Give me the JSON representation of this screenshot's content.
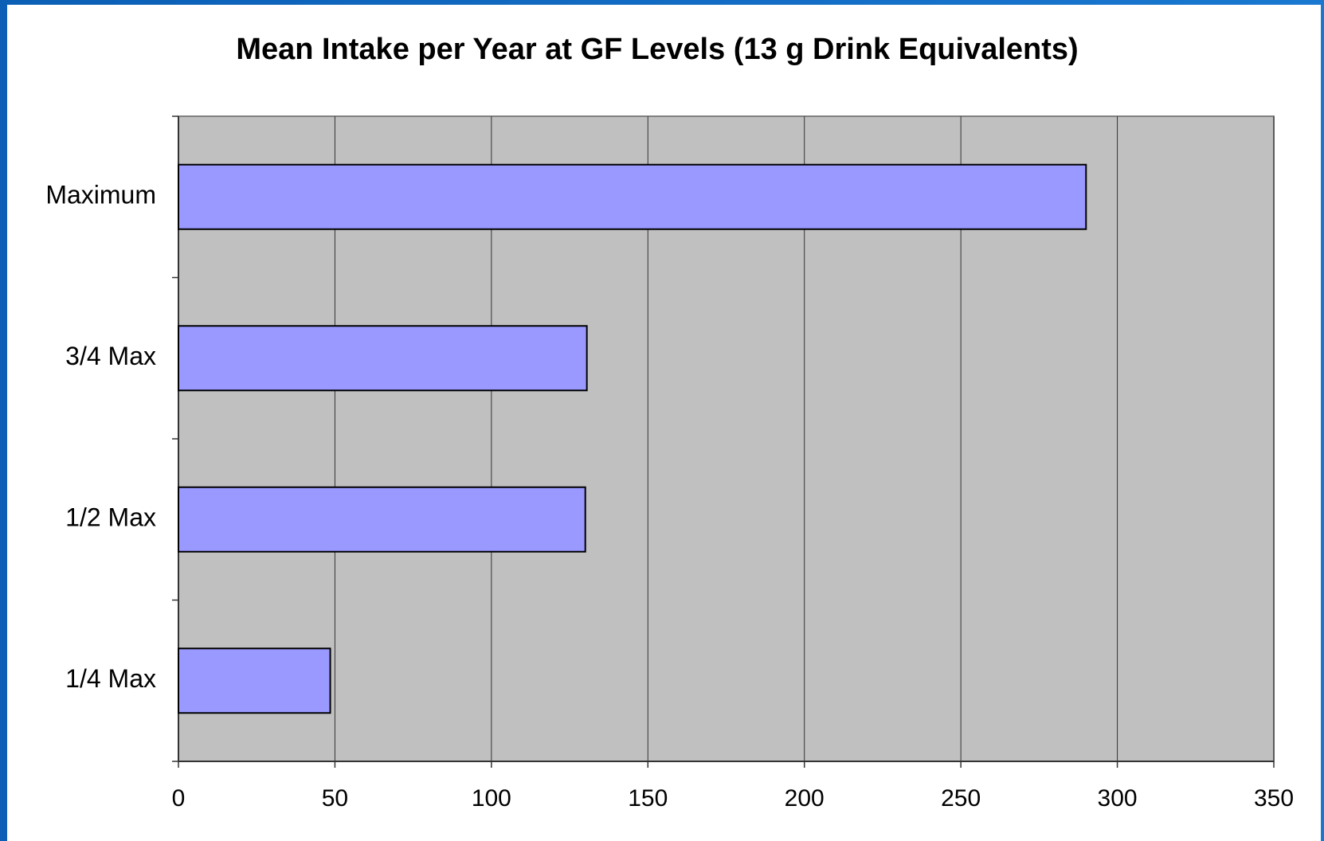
{
  "chart_data": {
    "type": "barh",
    "title": "Mean Intake per Year at GF Levels (13 g Drink Equivalents)",
    "categories": [
      "Maximum",
      "3/4 Max",
      "1/2 Max",
      "1/4 Max"
    ],
    "values": [
      290,
      130.5,
      130,
      48.5
    ],
    "color": "#9999ff",
    "xlim": [
      0,
      350
    ],
    "xticks": [
      0,
      50,
      100,
      150,
      200,
      250,
      300,
      350
    ],
    "grid": true
  }
}
